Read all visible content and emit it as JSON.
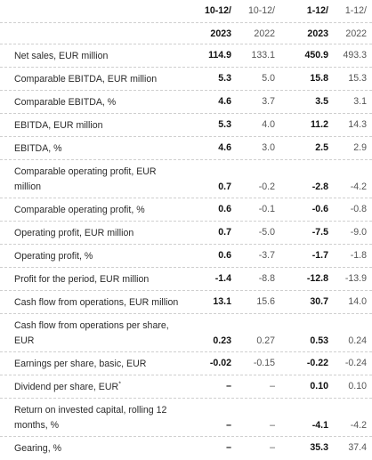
{
  "header": {
    "period_row": [
      "10-12/",
      "10-12/",
      "1-12/",
      "1-12/"
    ],
    "year_row": [
      "2023",
      "2022",
      "2023",
      "2022"
    ]
  },
  "rows": [
    {
      "label": "Net sales, EUR million",
      "values": [
        "114.9",
        "133.1",
        "450.9",
        "493.3"
      ]
    },
    {
      "label": "Comparable EBITDA, EUR million",
      "values": [
        "5.3",
        "5.0",
        "15.8",
        "15.3"
      ]
    },
    {
      "label": "Comparable EBITDA, %",
      "values": [
        "4.6",
        "3.7",
        "3.5",
        "3.1"
      ]
    },
    {
      "label": "EBITDA, EUR million",
      "values": [
        "5.3",
        "4.0",
        "11.2",
        "14.3"
      ]
    },
    {
      "label": "EBITDA, %",
      "values": [
        "4.6",
        "3.0",
        "2.5",
        "2.9"
      ]
    },
    {
      "label": "Comparable operating profit, EUR million",
      "values": [
        "0.7",
        "-0.2",
        "-2.8",
        "-4.2"
      ]
    },
    {
      "label": "Comparable operating profit, %",
      "values": [
        "0.6",
        "-0.1",
        "-0.6",
        "-0.8"
      ]
    },
    {
      "label": "Operating profit, EUR million",
      "values": [
        "0.7",
        "-5.0",
        "-7.5",
        "-9.0"
      ]
    },
    {
      "label": "Operating profit, %",
      "values": [
        "0.6",
        "-3.7",
        "-1.7",
        "-1.8"
      ]
    },
    {
      "label": "Profit for the period, EUR million",
      "values": [
        "-1.4",
        "-8.8",
        "-12.8",
        "-13.9"
      ]
    },
    {
      "label": "Cash flow from operations, EUR million",
      "values": [
        "13.1",
        "15.6",
        "30.7",
        "14.0"
      ]
    },
    {
      "label": "Cash flow from operations per share, EUR",
      "values": [
        "0.23",
        "0.27",
        "0.53",
        "0.24"
      ]
    },
    {
      "label": "Earnings per share, basic, EUR",
      "values": [
        "-0.02",
        "-0.15",
        "-0.22",
        "-0.24"
      ]
    },
    {
      "label": "Dividend per share, EUR",
      "footnote": "*",
      "values": [
        "–",
        "–",
        "0.10",
        "0.10"
      ]
    },
    {
      "label": "Return on invested capital, rolling 12 months, %",
      "values": [
        "–",
        "–",
        "-4.1",
        "-4.2"
      ]
    },
    {
      "label": "Gearing, %",
      "values": [
        "–",
        "–",
        "35.3",
        "37.4"
      ]
    }
  ]
}
